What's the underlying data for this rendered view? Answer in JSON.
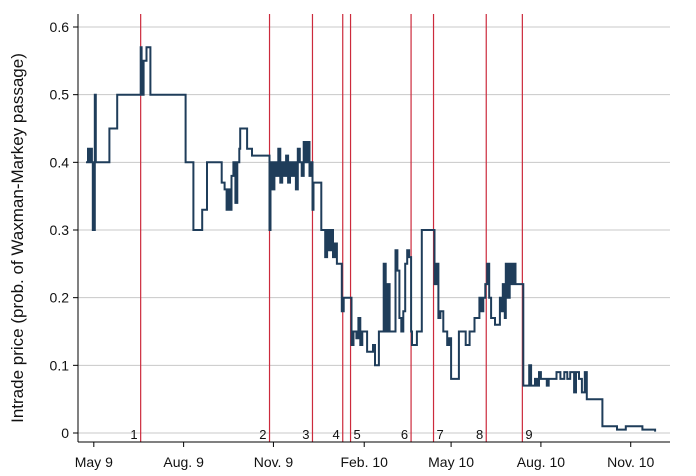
{
  "chart_data": {
    "type": "line",
    "title": "",
    "xlabel": "",
    "ylabel": "Intrade price (prob. of Waxman-Markey passage)",
    "x_axis": {
      "min": "2009-05-01",
      "max": "2010-12-10"
    },
    "ylim": [
      0,
      0.6
    ],
    "grid": true,
    "x_ticks": [
      {
        "date": "2009-05-09",
        "label": "May 9"
      },
      {
        "date": "2009-08-09",
        "label": "Aug. 9"
      },
      {
        "date": "2009-11-09",
        "label": "Nov. 9"
      },
      {
        "date": "2010-02-10",
        "label": "Feb. 10"
      },
      {
        "date": "2010-05-10",
        "label": "May 10"
      },
      {
        "date": "2010-08-10",
        "label": "Aug. 10"
      },
      {
        "date": "2010-11-10",
        "label": "Nov. 10"
      }
    ],
    "y_ticks": [
      {
        "value": 0,
        "label": "0"
      },
      {
        "value": 0.1,
        "label": "0.1"
      },
      {
        "value": 0.2,
        "label": "0.2"
      },
      {
        "value": 0.3,
        "label": "0.3"
      },
      {
        "value": 0.4,
        "label": "0.4"
      },
      {
        "value": 0.5,
        "label": "0.5"
      },
      {
        "value": 0.6,
        "label": "0.6"
      }
    ],
    "events": [
      {
        "label": "1",
        "date": "2009-06-26"
      },
      {
        "label": "2",
        "date": "2009-11-05"
      },
      {
        "label": "3",
        "date": "2009-12-19"
      },
      {
        "label": "4",
        "date": "2010-01-19"
      },
      {
        "label": "5",
        "date": "2010-01-27"
      },
      {
        "label": "6",
        "date": "2010-03-30"
      },
      {
        "label": "7",
        "date": "2010-04-22"
      },
      {
        "label": "8",
        "date": "2010-06-15"
      },
      {
        "label": "9",
        "date": "2010-07-22"
      }
    ],
    "colors": {
      "line": "#1f3d5a",
      "events": "#cc2a3c",
      "grid": "#c8c8c8",
      "axis": "#000000"
    },
    "series": [
      {
        "name": "",
        "points": [
          [
            "2009-05-01",
            0.4
          ],
          [
            "2009-05-03",
            0.42
          ],
          [
            "2009-05-04",
            0.4
          ],
          [
            "2009-05-06",
            0.42
          ],
          [
            "2009-05-07",
            0.4
          ],
          [
            "2009-05-08",
            0.3
          ],
          [
            "2009-05-09",
            0.3
          ],
          [
            "2009-05-10",
            0.5
          ],
          [
            "2009-05-11",
            0.4
          ],
          [
            "2009-05-15",
            0.4
          ],
          [
            "2009-05-16",
            0.4
          ],
          [
            "2009-05-24",
            0.4
          ],
          [
            "2009-05-25",
            0.45
          ],
          [
            "2009-06-01",
            0.45
          ],
          [
            "2009-06-02",
            0.5
          ],
          [
            "2009-06-25",
            0.5
          ],
          [
            "2009-06-26",
            0.57
          ],
          [
            "2009-06-27",
            0.5
          ],
          [
            "2009-06-29",
            0.55
          ],
          [
            "2009-07-01",
            0.55
          ],
          [
            "2009-07-02",
            0.57
          ],
          [
            "2009-07-05",
            0.57
          ],
          [
            "2009-07-06",
            0.5
          ],
          [
            "2009-07-26",
            0.5
          ],
          [
            "2009-07-27",
            0.5
          ],
          [
            "2009-07-30",
            0.5
          ],
          [
            "2009-08-10",
            0.5
          ],
          [
            "2009-08-11",
            0.4
          ],
          [
            "2009-08-18",
            0.4
          ],
          [
            "2009-08-19",
            0.3
          ],
          [
            "2009-08-27",
            0.3
          ],
          [
            "2009-08-28",
            0.33
          ],
          [
            "2009-09-01",
            0.33
          ],
          [
            "2009-09-02",
            0.4
          ],
          [
            "2009-09-16",
            0.4
          ],
          [
            "2009-09-17",
            0.37
          ],
          [
            "2009-09-20",
            0.36
          ],
          [
            "2009-09-22",
            0.33
          ],
          [
            "2009-09-24",
            0.36
          ],
          [
            "2009-09-26",
            0.33
          ],
          [
            "2009-09-27",
            0.38
          ],
          [
            "2009-09-29",
            0.4
          ],
          [
            "2009-10-01",
            0.34
          ],
          [
            "2009-10-03",
            0.4
          ],
          [
            "2009-10-05",
            0.42
          ],
          [
            "2009-10-06",
            0.45
          ],
          [
            "2009-10-12",
            0.45
          ],
          [
            "2009-10-13",
            0.42
          ],
          [
            "2009-10-17",
            0.42
          ],
          [
            "2009-10-18",
            0.41
          ],
          [
            "2009-11-04",
            0.41
          ],
          [
            "2009-11-05",
            0.3
          ],
          [
            "2009-11-06",
            0.4
          ],
          [
            "2009-11-08",
            0.36
          ],
          [
            "2009-11-10",
            0.4
          ],
          [
            "2009-11-12",
            0.38
          ],
          [
            "2009-11-14",
            0.42
          ],
          [
            "2009-11-16",
            0.37
          ],
          [
            "2009-11-18",
            0.4
          ],
          [
            "2009-11-20",
            0.38
          ],
          [
            "2009-11-22",
            0.41
          ],
          [
            "2009-11-24",
            0.37
          ],
          [
            "2009-11-26",
            0.4
          ],
          [
            "2009-11-28",
            0.38
          ],
          [
            "2009-11-30",
            0.4
          ],
          [
            "2009-12-02",
            0.36
          ],
          [
            "2009-12-04",
            0.42
          ],
          [
            "2009-12-06",
            0.4
          ],
          [
            "2009-12-08",
            0.38
          ],
          [
            "2009-12-10",
            0.43
          ],
          [
            "2009-12-12",
            0.4
          ],
          [
            "2009-12-14",
            0.43
          ],
          [
            "2009-12-16",
            0.38
          ],
          [
            "2009-12-18",
            0.4
          ],
          [
            "2009-12-19",
            0.33
          ],
          [
            "2009-12-20",
            0.37
          ],
          [
            "2009-12-27",
            0.37
          ],
          [
            "2009-12-28",
            0.3
          ],
          [
            "2009-12-31",
            0.3
          ],
          [
            "2010-01-01",
            0.26
          ],
          [
            "2010-01-03",
            0.3
          ],
          [
            "2010-01-05",
            0.27
          ],
          [
            "2010-01-07",
            0.3
          ],
          [
            "2010-01-09",
            0.26
          ],
          [
            "2010-01-11",
            0.28
          ],
          [
            "2010-01-13",
            0.25
          ],
          [
            "2010-01-17",
            0.25
          ],
          [
            "2010-01-18",
            0.18
          ],
          [
            "2010-01-20",
            0.2
          ],
          [
            "2010-01-27",
            0.2
          ],
          [
            "2010-01-28",
            0.13
          ],
          [
            "2010-01-30",
            0.15
          ],
          [
            "2010-02-02",
            0.14
          ],
          [
            "2010-02-04",
            0.17
          ],
          [
            "2010-02-06",
            0.13
          ],
          [
            "2010-02-08",
            0.15
          ],
          [
            "2010-02-12",
            0.15
          ],
          [
            "2010-02-13",
            0.12
          ],
          [
            "2010-02-17",
            0.12
          ],
          [
            "2010-02-19",
            0.13
          ],
          [
            "2010-02-21",
            0.1
          ],
          [
            "2010-02-23",
            0.1
          ],
          [
            "2010-02-25",
            0.15
          ],
          [
            "2010-03-01",
            0.15
          ],
          [
            "2010-03-02",
            0.25
          ],
          [
            "2010-03-04",
            0.15
          ],
          [
            "2010-03-06",
            0.22
          ],
          [
            "2010-03-08",
            0.15
          ],
          [
            "2010-03-12",
            0.15
          ],
          [
            "2010-03-14",
            0.27
          ],
          [
            "2010-03-16",
            0.24
          ],
          [
            "2010-03-18",
            0.17
          ],
          [
            "2010-03-20",
            0.15
          ],
          [
            "2010-03-22",
            0.18
          ],
          [
            "2010-03-24",
            0.25
          ],
          [
            "2010-03-26",
            0.27
          ],
          [
            "2010-03-28",
            0.26
          ],
          [
            "2010-03-30",
            0.15
          ],
          [
            "2010-03-31",
            0.13
          ],
          [
            "2010-04-03",
            0.13
          ],
          [
            "2010-04-05",
            0.15
          ],
          [
            "2010-04-09",
            0.15
          ],
          [
            "2010-04-10",
            0.3
          ],
          [
            "2010-04-22",
            0.3
          ],
          [
            "2010-04-23",
            0.22
          ],
          [
            "2010-04-25",
            0.25
          ],
          [
            "2010-04-27",
            0.17
          ],
          [
            "2010-04-29",
            0.18
          ],
          [
            "2010-05-01",
            0.18
          ],
          [
            "2010-05-02",
            0.15
          ],
          [
            "2010-05-06",
            0.13
          ],
          [
            "2010-05-08",
            0.14
          ],
          [
            "2010-05-10",
            0.08
          ],
          [
            "2010-05-17",
            0.08
          ],
          [
            "2010-05-18",
            0.15
          ],
          [
            "2010-05-24",
            0.15
          ],
          [
            "2010-05-25",
            0.13
          ],
          [
            "2010-05-28",
            0.13
          ],
          [
            "2010-05-29",
            0.15
          ],
          [
            "2010-06-01",
            0.15
          ],
          [
            "2010-06-03",
            0.17
          ],
          [
            "2010-06-07",
            0.17
          ],
          [
            "2010-06-08",
            0.2
          ],
          [
            "2010-06-10",
            0.18
          ],
          [
            "2010-06-12",
            0.2
          ],
          [
            "2010-06-14",
            0.22
          ],
          [
            "2010-06-16",
            0.25
          ],
          [
            "2010-06-18",
            0.2
          ],
          [
            "2010-06-20",
            0.17
          ],
          [
            "2010-06-22",
            0.17
          ],
          [
            "2010-06-24",
            0.16
          ],
          [
            "2010-06-28",
            0.16
          ],
          [
            "2010-06-29",
            0.2
          ],
          [
            "2010-07-01",
            0.18
          ],
          [
            "2010-07-02",
            0.22
          ],
          [
            "2010-07-04",
            0.17
          ],
          [
            "2010-07-05",
            0.25
          ],
          [
            "2010-07-07",
            0.2
          ],
          [
            "2010-07-09",
            0.25
          ],
          [
            "2010-07-11",
            0.22
          ],
          [
            "2010-07-13",
            0.25
          ],
          [
            "2010-07-15",
            0.22
          ],
          [
            "2010-07-22",
            0.22
          ],
          [
            "2010-07-23",
            0.07
          ],
          [
            "2010-07-27",
            0.07
          ],
          [
            "2010-07-29",
            0.1
          ],
          [
            "2010-07-31",
            0.07
          ],
          [
            "2010-08-04",
            0.08
          ],
          [
            "2010-08-06",
            0.07
          ],
          [
            "2010-08-08",
            0.09
          ],
          [
            "2010-08-10",
            0.08
          ],
          [
            "2010-08-14",
            0.08
          ],
          [
            "2010-08-16",
            0.07
          ],
          [
            "2010-08-18",
            0.08
          ],
          [
            "2010-08-24",
            0.08
          ],
          [
            "2010-08-26",
            0.09
          ],
          [
            "2010-08-30",
            0.08
          ],
          [
            "2010-09-03",
            0.09
          ],
          [
            "2010-09-06",
            0.08
          ],
          [
            "2010-09-09",
            0.09
          ],
          [
            "2010-09-13",
            0.06
          ],
          [
            "2010-09-15",
            0.09
          ],
          [
            "2010-09-18",
            0.08
          ],
          [
            "2010-09-21",
            0.06
          ],
          [
            "2010-09-24",
            0.09
          ],
          [
            "2010-09-26",
            0.05
          ],
          [
            "2010-10-01",
            0.05
          ],
          [
            "2010-10-10",
            0.05
          ],
          [
            "2010-10-12",
            0.01
          ],
          [
            "2010-10-25",
            0.01
          ],
          [
            "2010-10-27",
            0.005
          ],
          [
            "2010-11-03",
            0.005
          ],
          [
            "2010-11-05",
            0.01
          ],
          [
            "2010-11-20",
            0.01
          ],
          [
            "2010-11-22",
            0.005
          ],
          [
            "2010-12-05",
            0.002
          ]
        ]
      }
    ]
  }
}
